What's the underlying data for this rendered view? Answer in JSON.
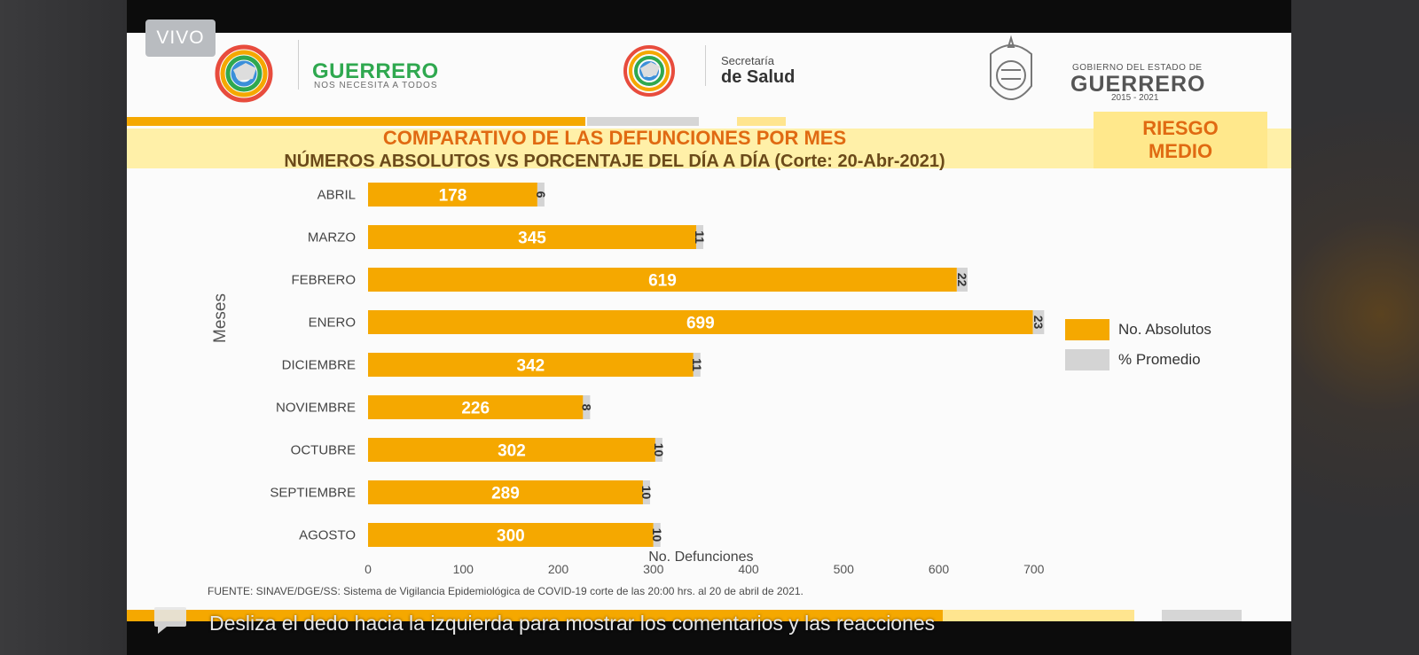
{
  "live_badge": "VIVO",
  "header": {
    "guerrero_brand": "GUERRERO",
    "guerrero_tagline": "NOS NECESITA A TODOS",
    "salud_small": "Secretaría",
    "salud_big": "de Salud",
    "gobierno_small": "GOBIERNO DEL ESTADO DE",
    "gobierno_big": "GUERRERO",
    "gobierno_years": "2015 - 2021"
  },
  "risk_label_line1": "RIESGO",
  "risk_label_line2": "MEDIO",
  "title_line1": "COMPARATIVO DE LAS DEFUNCIONES POR MES",
  "title_line2": "NÚMEROS ABSOLUTOS VS PORCENTAJE DEL DÍA A DÍA   (Corte: 20-Abr-2021)",
  "footer_note": "FUENTE: SINAVE/DGE/SS: Sistema de Vigilancia Epidemiológica de COVID-19 corte de las 20:00 hrs. al 20 de  abril de 2021.",
  "hint_text": "Desliza el dedo hacia la izquierda para mostrar los comentarios y las reacciones",
  "colors": {
    "absolute": "#f5a800",
    "percent": "#d4d4d4",
    "title": "#e06a12"
  },
  "chart_data": {
    "type": "bar",
    "orientation": "horizontal",
    "categories": [
      "ABRIL",
      "MARZO",
      "FEBRERO",
      "ENERO",
      "DICIEMBRE",
      "NOVIEMBRE",
      "OCTUBRE",
      "SEPTIEMBRE",
      "AGOSTO"
    ],
    "series": [
      {
        "name": "No. Absolutos",
        "values": [
          178,
          345,
          619,
          699,
          342,
          226,
          302,
          289,
          300
        ]
      },
      {
        "name": "% Promedio",
        "values": [
          6,
          11,
          22,
          23,
          11,
          8,
          10,
          10,
          10
        ]
      }
    ],
    "stacked": true,
    "xlabel": "No. Defunciones",
    "ylabel": "Meses",
    "xlim": [
      0,
      700
    ],
    "xticks": [
      0,
      100,
      200,
      300,
      400,
      500,
      600,
      700
    ],
    "grid": false,
    "legend": "right"
  }
}
